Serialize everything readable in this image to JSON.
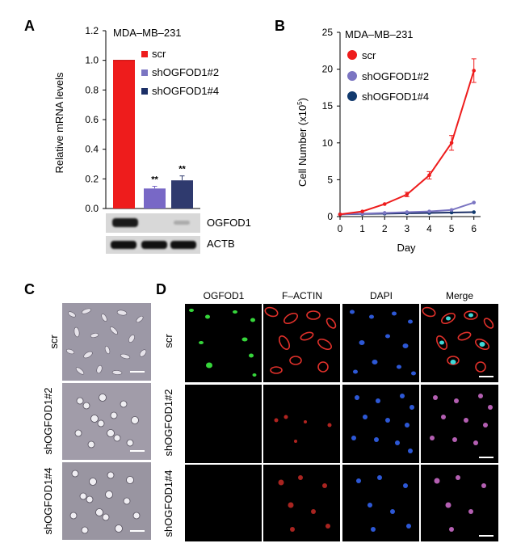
{
  "colors": {
    "scr": "#ee1c1c",
    "sh2": "#7868c6",
    "sh4": "#2f3a6e",
    "sh2_marker": "#7b75c2",
    "sh4_marker": "#123a6e",
    "line_sh4": "#1b2f66"
  },
  "panels": {
    "A": {
      "letter": "A",
      "chart_data": {
        "type": "bar",
        "title": "MDA–MB–231",
        "ylabel": "Relative mRNA levels",
        "ylim": [
          0,
          1.2
        ],
        "yticks": [
          "0.0",
          "0.2",
          "0.4",
          "0.6",
          "0.8",
          "1.0",
          "1.2"
        ],
        "categories": [
          "scr",
          "shOGFOD1#2",
          "shOGFOD1#4"
        ],
        "values": [
          1.0,
          0.135,
          0.19
        ],
        "errors": [
          0.0,
          0.015,
          0.03
        ],
        "significance": [
          "",
          "**",
          "**"
        ],
        "legend": [
          "scr",
          "shOGFOD1#2",
          "shOGFOD1#4"
        ]
      },
      "blot_labels": [
        "OGFOD1",
        "ACTB"
      ]
    },
    "B": {
      "letter": "B",
      "chart_data": {
        "type": "line",
        "title": "MDA–MB–231",
        "xlabel": "Day",
        "ylabel_main": "Cell Number (x10",
        "ylabel_sup": "5",
        "ylabel_end": ")",
        "xlim": [
          0,
          6.3
        ],
        "ylim": [
          0,
          25
        ],
        "xticks": [
          "0",
          "1",
          "2",
          "3",
          "4",
          "5",
          "6"
        ],
        "yticks": [
          "0",
          "5",
          "10",
          "15",
          "20",
          "25"
        ],
        "x": [
          0,
          1,
          2,
          3,
          4,
          5,
          6
        ],
        "series": [
          {
            "name": "scr",
            "values": [
              0.3,
              0.7,
              1.7,
              3.0,
              5.6,
              10.0,
              19.8
            ],
            "errors": [
              0.1,
              0.1,
              0.2,
              0.3,
              0.5,
              1.0,
              1.6
            ]
          },
          {
            "name": "shOGFOD1#2",
            "values": [
              0.3,
              0.4,
              0.5,
              0.6,
              0.7,
              0.9,
              1.9
            ],
            "errors": [
              0.05,
              0.05,
              0.05,
              0.05,
              0.1,
              0.1,
              0.15
            ]
          },
          {
            "name": "shOGFOD1#4",
            "values": [
              0.3,
              0.35,
              0.4,
              0.45,
              0.5,
              0.55,
              0.6
            ],
            "errors": [
              0.05,
              0.05,
              0.05,
              0.05,
              0.05,
              0.05,
              0.05
            ]
          }
        ],
        "legend": [
          "scr",
          "shOGFOD1#2",
          "shOGFOD1#4"
        ]
      }
    },
    "C": {
      "letter": "C",
      "rows": [
        "scr",
        "shOGFOD1#2",
        "shOGFOD1#4"
      ]
    },
    "D": {
      "letter": "D",
      "columns": [
        "OGFOD1",
        "F–ACTIN",
        "DAPI",
        "Merge"
      ],
      "rows": [
        "scr",
        "shOGFOD1#2",
        "shOGFOD1#4"
      ]
    }
  }
}
